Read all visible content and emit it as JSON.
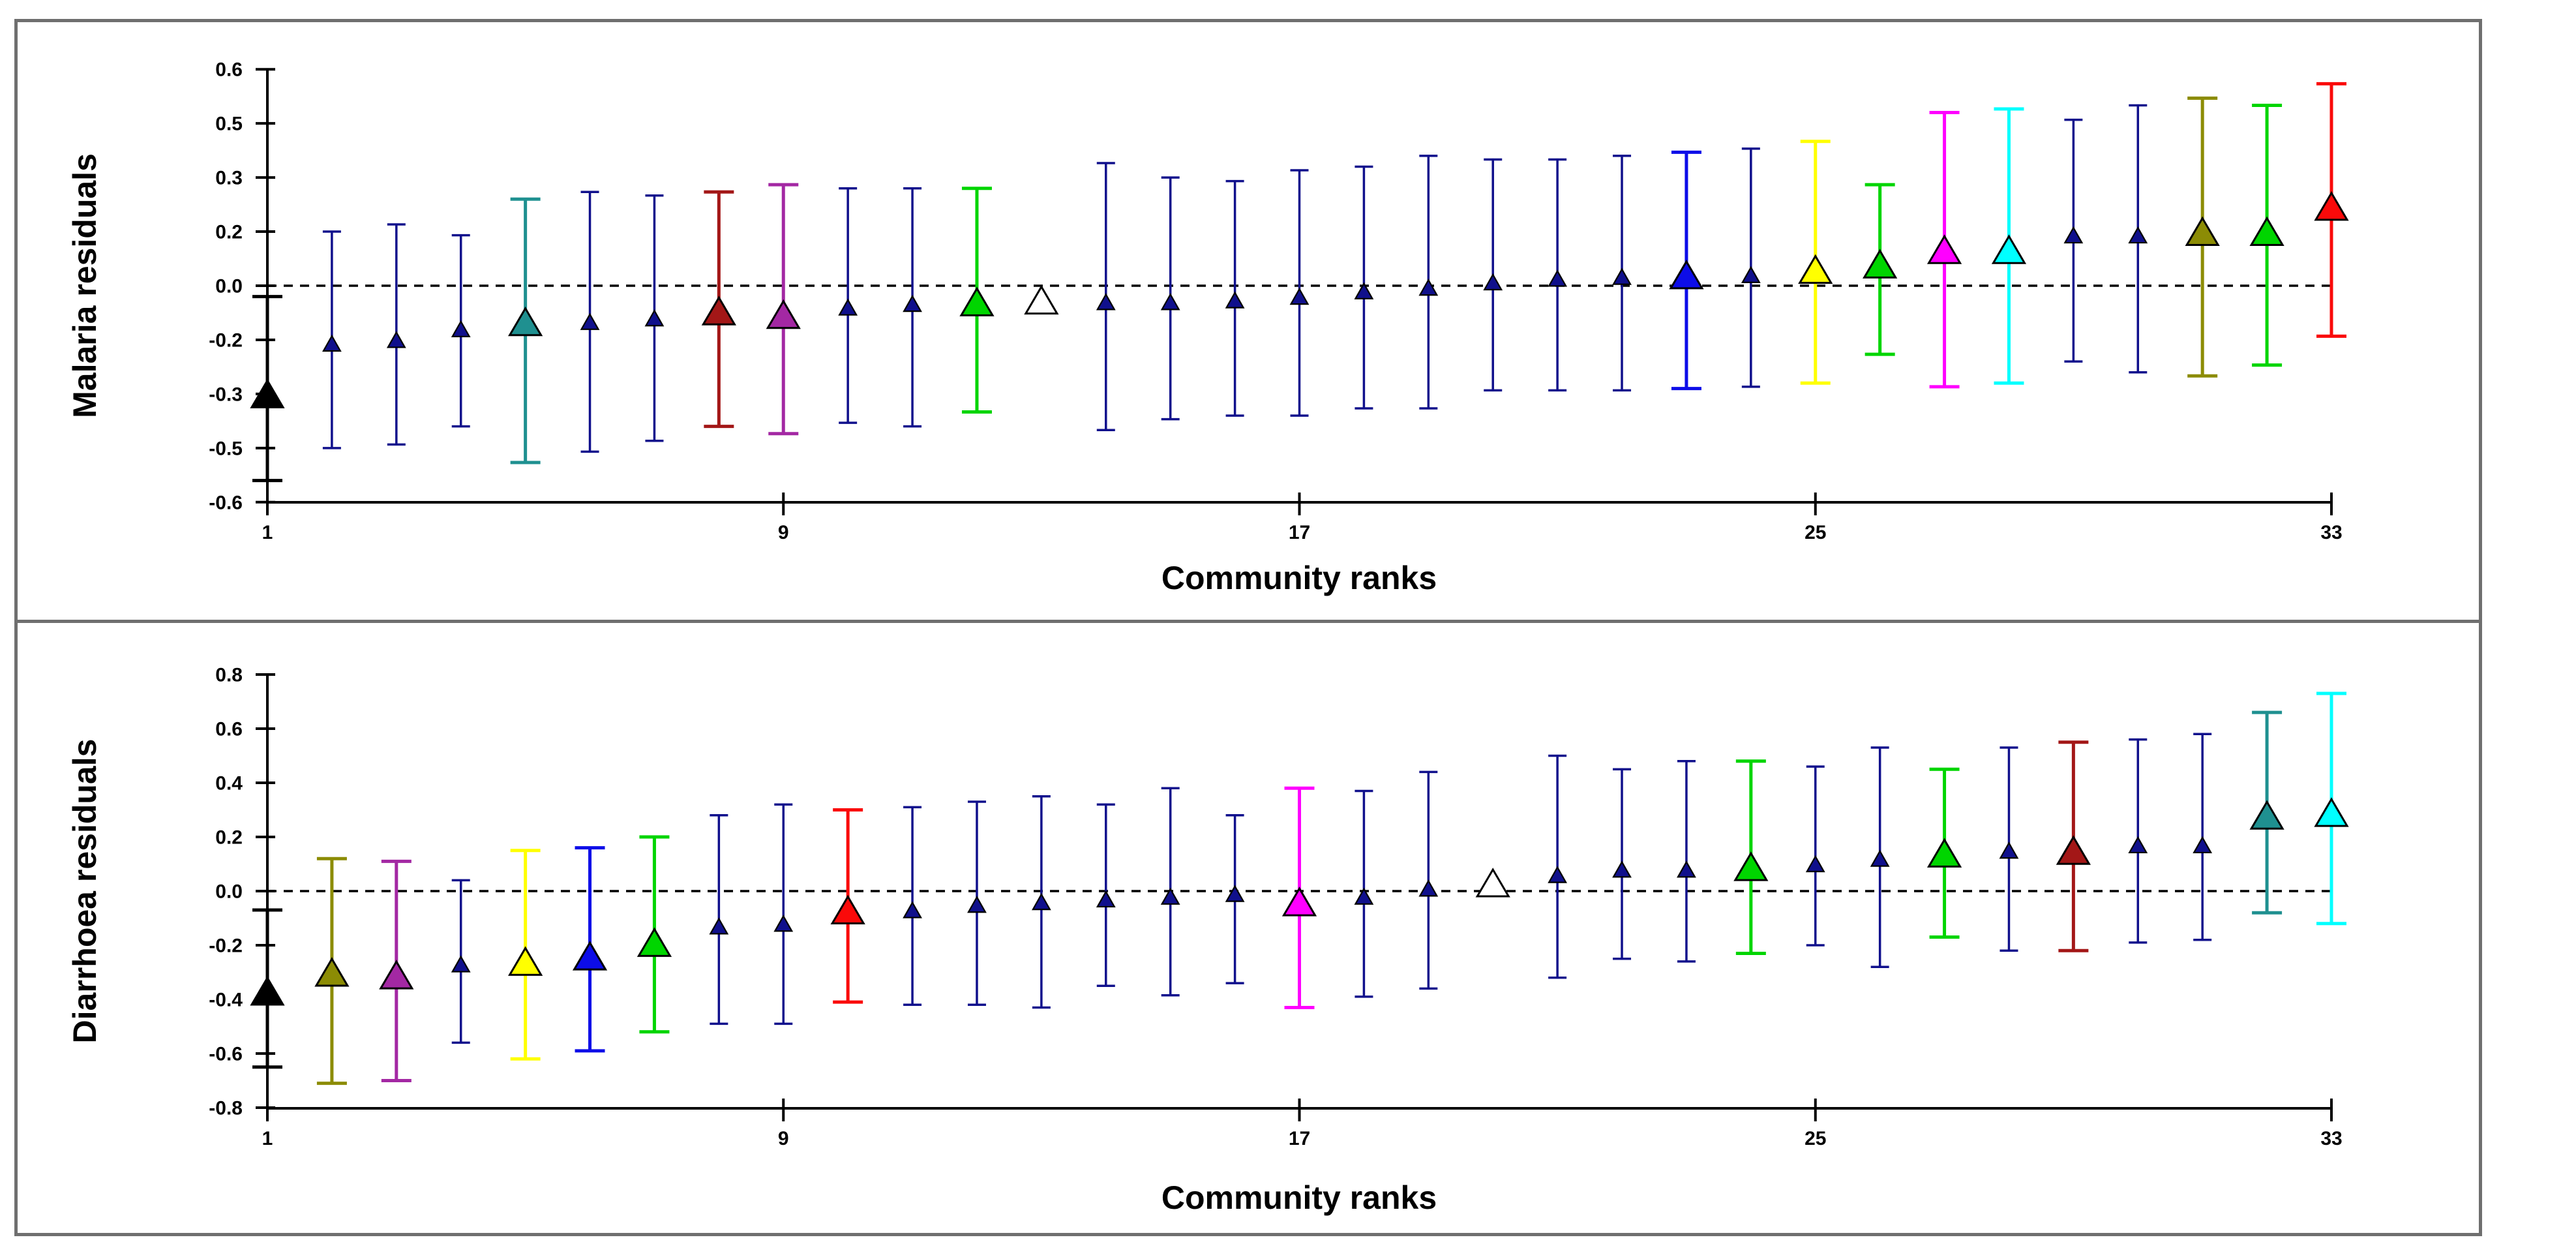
{
  "figure": {
    "background": "#ffffff",
    "frame_color": "#6f6f6f",
    "text_color": "#000000"
  },
  "palette": {
    "black": "#000000",
    "navy": "#10108C",
    "blue": "#0D0DE8",
    "teal": "#1F9090",
    "green": "#00D500",
    "darkred": "#A31717",
    "purple": "#A328A3",
    "olive": "#8C8C05",
    "yellow": "#FFFF00",
    "magenta": "#FF00FF",
    "cyan": "#00FFFF",
    "red": "#FA0A0A",
    "white": "#FFFFFF"
  },
  "chart_data": [
    {
      "type": "scatter",
      "subtype": "caterpillar-errorbar",
      "title": "",
      "ylabel": "Malaria residuals",
      "xlabel": "Community ranks",
      "ylim": [
        -0.6,
        0.6
      ],
      "xlim": [
        1,
        33
      ],
      "grid": false,
      "legend": "none",
      "zero_line": "dashed",
      "x_tick_values": [
        1,
        9,
        17,
        25,
        33
      ],
      "x_tick_labels": [
        "1",
        "9",
        "17",
        "25",
        "33"
      ],
      "y_tick_values": [
        0.6,
        0.45,
        0.3,
        0.15,
        0,
        -0.15,
        -0.3,
        -0.45,
        -0.6
      ],
      "y_tick_labels": [
        "0.6",
        "0.5",
        "0.3",
        "0.2",
        "0.0",
        "-0.2",
        "-0.3",
        "-0.5",
        "-0.6"
      ],
      "points": [
        {
          "rank": 1,
          "value": -0.3,
          "lo": -0.54,
          "hi": -0.03,
          "color": "black",
          "size": "large"
        },
        {
          "rank": 2,
          "value": -0.16,
          "lo": -0.45,
          "hi": 0.15,
          "color": "navy",
          "size": "small"
        },
        {
          "rank": 3,
          "value": -0.15,
          "lo": -0.44,
          "hi": 0.17,
          "color": "navy",
          "size": "small"
        },
        {
          "rank": 4,
          "value": -0.12,
          "lo": -0.39,
          "hi": 0.14,
          "color": "navy",
          "size": "small"
        },
        {
          "rank": 5,
          "value": -0.1,
          "lo": -0.49,
          "hi": 0.24,
          "color": "teal",
          "size": "large"
        },
        {
          "rank": 6,
          "value": -0.1,
          "lo": -0.46,
          "hi": 0.26,
          "color": "navy",
          "size": "small"
        },
        {
          "rank": 7,
          "value": -0.09,
          "lo": -0.43,
          "hi": 0.25,
          "color": "navy",
          "size": "small"
        },
        {
          "rank": 8,
          "value": -0.07,
          "lo": -0.39,
          "hi": 0.26,
          "color": "darkred",
          "size": "large"
        },
        {
          "rank": 9,
          "value": -0.08,
          "lo": -0.41,
          "hi": 0.28,
          "color": "purple",
          "size": "large"
        },
        {
          "rank": 10,
          "value": -0.06,
          "lo": -0.38,
          "hi": 0.27,
          "color": "navy",
          "size": "small"
        },
        {
          "rank": 11,
          "value": -0.05,
          "lo": -0.39,
          "hi": 0.27,
          "color": "navy",
          "size": "small"
        },
        {
          "rank": 12,
          "value": -0.045,
          "lo": -0.35,
          "hi": 0.27,
          "color": "green",
          "size": "large"
        },
        {
          "rank": 13,
          "value": -0.04,
          "lo": null,
          "hi": null,
          "color": "white",
          "size": "large"
        },
        {
          "rank": 14,
          "value": -0.045,
          "lo": -0.4,
          "hi": 0.34,
          "color": "navy",
          "size": "small"
        },
        {
          "rank": 15,
          "value": -0.045,
          "lo": -0.37,
          "hi": 0.3,
          "color": "navy",
          "size": "small"
        },
        {
          "rank": 16,
          "value": -0.04,
          "lo": -0.36,
          "hi": 0.29,
          "color": "navy",
          "size": "small"
        },
        {
          "rank": 17,
          "value": -0.03,
          "lo": -0.36,
          "hi": 0.32,
          "color": "navy",
          "size": "small"
        },
        {
          "rank": 18,
          "value": -0.015,
          "lo": -0.34,
          "hi": 0.33,
          "color": "navy",
          "size": "small"
        },
        {
          "rank": 19,
          "value": -0.005,
          "lo": -0.34,
          "hi": 0.36,
          "color": "navy",
          "size": "small"
        },
        {
          "rank": 20,
          "value": 0.01,
          "lo": -0.29,
          "hi": 0.35,
          "color": "navy",
          "size": "small"
        },
        {
          "rank": 21,
          "value": 0.02,
          "lo": -0.29,
          "hi": 0.35,
          "color": "navy",
          "size": "small"
        },
        {
          "rank": 22,
          "value": 0.025,
          "lo": -0.29,
          "hi": 0.36,
          "color": "navy",
          "size": "small"
        },
        {
          "rank": 23,
          "value": 0.03,
          "lo": -0.285,
          "hi": 0.37,
          "color": "blue",
          "size": "large"
        },
        {
          "rank": 24,
          "value": 0.03,
          "lo": -0.28,
          "hi": 0.38,
          "color": "navy",
          "size": "small"
        },
        {
          "rank": 25,
          "value": 0.045,
          "lo": -0.27,
          "hi": 0.4,
          "color": "yellow",
          "size": "large"
        },
        {
          "rank": 26,
          "value": 0.06,
          "lo": -0.19,
          "hi": 0.28,
          "color": "green",
          "size": "large"
        },
        {
          "rank": 27,
          "value": 0.1,
          "lo": -0.28,
          "hi": 0.48,
          "color": "magenta",
          "size": "large"
        },
        {
          "rank": 28,
          "value": 0.1,
          "lo": -0.27,
          "hi": 0.49,
          "color": "cyan",
          "size": "large"
        },
        {
          "rank": 29,
          "value": 0.14,
          "lo": -0.21,
          "hi": 0.46,
          "color": "navy",
          "size": "small"
        },
        {
          "rank": 30,
          "value": 0.14,
          "lo": -0.24,
          "hi": 0.5,
          "color": "navy",
          "size": "small"
        },
        {
          "rank": 31,
          "value": 0.15,
          "lo": -0.25,
          "hi": 0.52,
          "color": "olive",
          "size": "large"
        },
        {
          "rank": 32,
          "value": 0.15,
          "lo": -0.22,
          "hi": 0.5,
          "color": "green",
          "size": "large"
        },
        {
          "rank": 33,
          "value": 0.22,
          "lo": -0.14,
          "hi": 0.56,
          "color": "red",
          "size": "large"
        }
      ]
    },
    {
      "type": "scatter",
      "subtype": "caterpillar-errorbar",
      "title": "",
      "ylabel": "Diarrhoea residuals",
      "xlabel": "Community ranks",
      "ylim": [
        -0.8,
        0.8
      ],
      "xlim": [
        1,
        33
      ],
      "grid": false,
      "legend": "none",
      "zero_line": "dashed",
      "x_tick_values": [
        1,
        9,
        17,
        25,
        33
      ],
      "x_tick_labels": [
        "1",
        "9",
        "17",
        "25",
        "33"
      ],
      "y_tick_values": [
        0.8,
        0.6,
        0.4,
        0.2,
        0,
        -0.2,
        -0.4,
        -0.6,
        -0.8
      ],
      "y_tick_labels": [
        "0.8",
        "0.6",
        "0.4",
        "0.2",
        "0.0",
        "-0.2",
        "-0.4",
        "-0.6",
        "-0.8"
      ],
      "points": [
        {
          "rank": 1,
          "value": -0.37,
          "lo": -0.65,
          "hi": -0.07,
          "color": "black",
          "size": "large"
        },
        {
          "rank": 2,
          "value": -0.3,
          "lo": -0.71,
          "hi": 0.12,
          "color": "olive",
          "size": "large"
        },
        {
          "rank": 3,
          "value": -0.31,
          "lo": -0.7,
          "hi": 0.11,
          "color": "purple",
          "size": "large"
        },
        {
          "rank": 4,
          "value": -0.27,
          "lo": -0.56,
          "hi": 0.04,
          "color": "navy",
          "size": "small"
        },
        {
          "rank": 5,
          "value": -0.26,
          "lo": -0.62,
          "hi": 0.15,
          "color": "yellow",
          "size": "large"
        },
        {
          "rank": 6,
          "value": -0.24,
          "lo": -0.59,
          "hi": 0.16,
          "color": "blue",
          "size": "large"
        },
        {
          "rank": 7,
          "value": -0.19,
          "lo": -0.52,
          "hi": 0.2,
          "color": "green",
          "size": "large"
        },
        {
          "rank": 8,
          "value": -0.13,
          "lo": -0.49,
          "hi": 0.28,
          "color": "navy",
          "size": "small"
        },
        {
          "rank": 9,
          "value": -0.12,
          "lo": -0.49,
          "hi": 0.32,
          "color": "navy",
          "size": "small"
        },
        {
          "rank": 10,
          "value": -0.07,
          "lo": -0.41,
          "hi": 0.3,
          "color": "red",
          "size": "large"
        },
        {
          "rank": 11,
          "value": -0.07,
          "lo": -0.42,
          "hi": 0.31,
          "color": "navy",
          "size": "small"
        },
        {
          "rank": 12,
          "value": -0.05,
          "lo": -0.42,
          "hi": 0.33,
          "color": "navy",
          "size": "small"
        },
        {
          "rank": 13,
          "value": -0.04,
          "lo": -0.43,
          "hi": 0.35,
          "color": "navy",
          "size": "small"
        },
        {
          "rank": 14,
          "value": -0.03,
          "lo": -0.35,
          "hi": 0.32,
          "color": "navy",
          "size": "small"
        },
        {
          "rank": 15,
          "value": -0.02,
          "lo": -0.385,
          "hi": 0.38,
          "color": "navy",
          "size": "small"
        },
        {
          "rank": 16,
          "value": -0.01,
          "lo": -0.34,
          "hi": 0.28,
          "color": "navy",
          "size": "small"
        },
        {
          "rank": 17,
          "value": -0.04,
          "lo": -0.43,
          "hi": 0.38,
          "color": "magenta",
          "size": "large"
        },
        {
          "rank": 18,
          "value": -0.02,
          "lo": -0.39,
          "hi": 0.37,
          "color": "navy",
          "size": "small"
        },
        {
          "rank": 19,
          "value": 0.01,
          "lo": -0.36,
          "hi": 0.44,
          "color": "navy",
          "size": "small"
        },
        {
          "rank": 20,
          "value": 0.03,
          "lo": null,
          "hi": null,
          "color": "white",
          "size": "large"
        },
        {
          "rank": 21,
          "value": 0.06,
          "lo": -0.32,
          "hi": 0.5,
          "color": "navy",
          "size": "small"
        },
        {
          "rank": 22,
          "value": 0.08,
          "lo": -0.25,
          "hi": 0.45,
          "color": "navy",
          "size": "small"
        },
        {
          "rank": 23,
          "value": 0.08,
          "lo": -0.26,
          "hi": 0.48,
          "color": "navy",
          "size": "small"
        },
        {
          "rank": 24,
          "value": 0.09,
          "lo": -0.23,
          "hi": 0.48,
          "color": "green",
          "size": "large"
        },
        {
          "rank": 25,
          "value": 0.1,
          "lo": -0.2,
          "hi": 0.46,
          "color": "navy",
          "size": "small"
        },
        {
          "rank": 26,
          "value": 0.12,
          "lo": -0.28,
          "hi": 0.53,
          "color": "navy",
          "size": "small"
        },
        {
          "rank": 27,
          "value": 0.14,
          "lo": -0.17,
          "hi": 0.45,
          "color": "green",
          "size": "large"
        },
        {
          "rank": 28,
          "value": 0.15,
          "lo": -0.22,
          "hi": 0.53,
          "color": "navy",
          "size": "small"
        },
        {
          "rank": 29,
          "value": 0.15,
          "lo": -0.22,
          "hi": 0.55,
          "color": "darkred",
          "size": "large"
        },
        {
          "rank": 30,
          "value": 0.17,
          "lo": -0.19,
          "hi": 0.56,
          "color": "navy",
          "size": "small"
        },
        {
          "rank": 31,
          "value": 0.17,
          "lo": -0.18,
          "hi": 0.58,
          "color": "navy",
          "size": "small"
        },
        {
          "rank": 32,
          "value": 0.28,
          "lo": -0.08,
          "hi": 0.66,
          "color": "teal",
          "size": "large"
        },
        {
          "rank": 33,
          "value": 0.29,
          "lo": -0.12,
          "hi": 0.73,
          "color": "cyan",
          "size": "large"
        }
      ]
    }
  ]
}
